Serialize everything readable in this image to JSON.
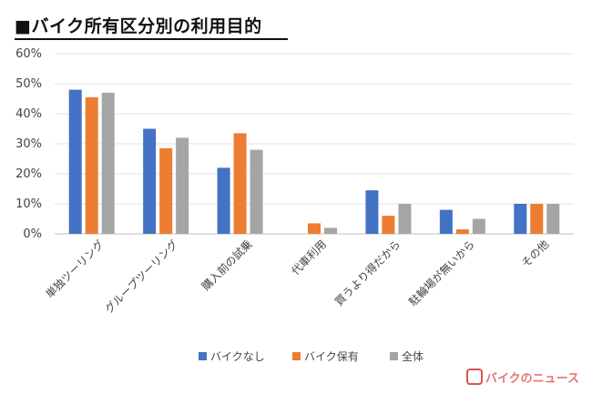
{
  "chart_data": {
    "type": "bar",
    "title": "■バイク所有区分別の利用目的",
    "xlabel": "",
    "ylabel": "",
    "ylim": [
      0,
      60
    ],
    "yticks": [
      "0%",
      "10%",
      "20%",
      "30%",
      "40%",
      "50%",
      "60%"
    ],
    "grid": true,
    "legend_position": "bottom",
    "categories": [
      "単独ツーリング",
      "グループツーリング",
      "購入前の試乗",
      "代車利用",
      "買うより得だから",
      "駐輪場が無いから",
      "その他"
    ],
    "series": [
      {
        "name": "バイクなし",
        "color": "#4472c4",
        "values": [
          48,
          35,
          22,
          0,
          14.5,
          8,
          10
        ]
      },
      {
        "name": "バイク保有",
        "color": "#ed7d31",
        "values": [
          45.5,
          28.5,
          33.5,
          3.5,
          6,
          1.5,
          10
        ]
      },
      {
        "name": "全体",
        "color": "#a5a5a5",
        "values": [
          47,
          32,
          28,
          2,
          10,
          5,
          10
        ]
      }
    ]
  },
  "brand": {
    "name": "バイクのニュース",
    "color": "#d9534f"
  }
}
